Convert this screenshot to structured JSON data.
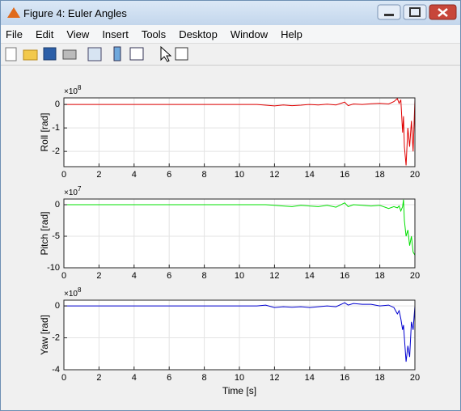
{
  "window": {
    "title": "Figure 4: Euler Angles"
  },
  "menu": [
    "File",
    "Edit",
    "View",
    "Insert",
    "Tools",
    "Desktop",
    "Window",
    "Help"
  ],
  "chart_data": [
    {
      "type": "line",
      "ylabel": "Roll [rad]",
      "multiplier": {
        "base": "×10",
        "power": "8"
      },
      "color": "#e00000",
      "x": [
        0,
        2,
        4,
        6,
        8,
        10,
        11,
        11.5,
        12,
        12.5,
        13,
        13.5,
        14,
        14.5,
        15,
        15.5,
        16,
        16.2,
        16.5,
        17,
        17.5,
        18,
        18.5,
        18.8,
        19,
        19.1,
        19.2,
        19.3,
        19.35,
        19.4,
        19.5,
        19.6,
        19.7,
        19.8,
        19.9,
        20
      ],
      "values": [
        0,
        0,
        0,
        0,
        0,
        0,
        0,
        -0.03,
        -0.06,
        -0.02,
        -0.05,
        -0.03,
        0,
        -0.02,
        0.01,
        -0.02,
        0.1,
        -0.05,
        0.02,
        0.0,
        0.03,
        0.05,
        0.02,
        0.12,
        0.25,
        0.05,
        0.2,
        -1.2,
        -0.5,
        -1.8,
        -2.6,
        -1.0,
        -1.8,
        -0.7,
        -2.0,
        0.2
      ],
      "xlim": [
        0,
        20
      ],
      "xticks": [
        0,
        2,
        4,
        6,
        8,
        10,
        12,
        14,
        16,
        18,
        20
      ],
      "ylim": [
        -2.65,
        0.28
      ],
      "yticks": [
        -2,
        -1,
        0
      ],
      "grid": true
    },
    {
      "type": "line",
      "ylabel": "Pitch [rad]",
      "multiplier": {
        "base": "×10",
        "power": "7"
      },
      "color": "#00e000",
      "x": [
        0,
        2,
        4,
        6,
        8,
        10,
        11,
        11.5,
        12,
        12.5,
        13,
        13.5,
        14,
        14.5,
        15,
        15.5,
        16,
        16.2,
        16.5,
        17,
        17.5,
        18,
        18.5,
        18.8,
        19,
        19.1,
        19.2,
        19.3,
        19.35,
        19.4,
        19.5,
        19.6,
        19.7,
        19.8,
        19.9,
        20
      ],
      "values": [
        0,
        0,
        0,
        0,
        0,
        0,
        0,
        0,
        -0.1,
        -0.2,
        -0.3,
        -0.1,
        -0.2,
        -0.3,
        -0.1,
        -0.4,
        0.3,
        -0.3,
        0,
        -0.1,
        -0.2,
        -0.1,
        -0.6,
        -0.3,
        -0.5,
        -0.2,
        -1.0,
        -0.3,
        0.8,
        -2.5,
        -5,
        -4,
        -6.5,
        -5,
        -7.5,
        -8
      ],
      "xlim": [
        0,
        20
      ],
      "xticks": [
        0,
        2,
        4,
        6,
        8,
        10,
        12,
        14,
        16,
        18,
        20
      ],
      "ylim": [
        -10,
        0.9
      ],
      "yticks": [
        -10,
        -5,
        0
      ],
      "grid": true
    },
    {
      "type": "line",
      "ylabel": "Yaw [rad]",
      "xlabel": "Time [s]",
      "multiplier": {
        "base": "×10",
        "power": "8"
      },
      "color": "#0000d0",
      "x": [
        0,
        2,
        4,
        6,
        8,
        10,
        11,
        11.5,
        12,
        12.5,
        13,
        13.5,
        14,
        14.5,
        15,
        15.5,
        16,
        16.2,
        16.5,
        17,
        17.5,
        18,
        18.5,
        18.8,
        19,
        19.1,
        19.2,
        19.3,
        19.35,
        19.4,
        19.5,
        19.6,
        19.7,
        19.8,
        19.9,
        20
      ],
      "values": [
        0,
        0,
        0,
        0,
        0,
        0,
        0,
        0.05,
        -0.1,
        -0.05,
        -0.08,
        -0.05,
        -0.1,
        -0.05,
        0,
        -0.05,
        0.2,
        0.05,
        0.15,
        0.1,
        0.1,
        0.0,
        0.05,
        -0.1,
        -0.5,
        -0.3,
        -0.8,
        -1.5,
        -1.2,
        -2.0,
        -3.5,
        -2.5,
        -3.2,
        -1.0,
        -1.5,
        0
      ],
      "xlim": [
        0,
        20
      ],
      "xticks": [
        0,
        2,
        4,
        6,
        8,
        10,
        12,
        14,
        16,
        18,
        20
      ],
      "ylim": [
        -4,
        0.36
      ],
      "yticks": [
        -4,
        -2,
        0
      ],
      "grid": true
    }
  ]
}
